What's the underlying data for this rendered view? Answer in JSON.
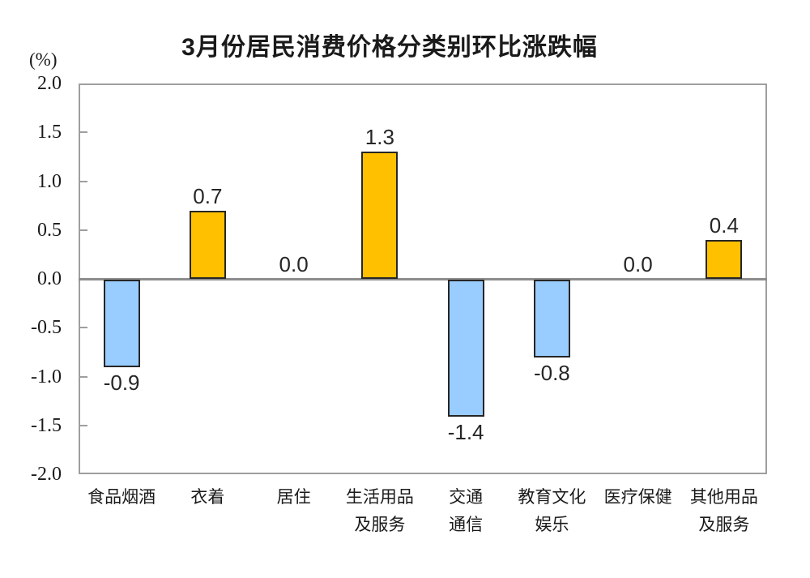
{
  "chart_data": {
    "type": "bar",
    "title": "3月份居民消费价格分类别环比涨跌幅",
    "unit_label": "(%)",
    "categories": [
      "食品烟酒",
      "衣着",
      "居住",
      "生活用品及服务",
      "交通通信",
      "教育文化娱乐",
      "医疗保健",
      "其他用品及服务"
    ],
    "category_lines": [
      [
        "食品烟酒"
      ],
      [
        "衣着"
      ],
      [
        "居住"
      ],
      [
        "生活用品",
        "及服务"
      ],
      [
        "交通",
        "通信"
      ],
      [
        "教育文化",
        "娱乐"
      ],
      [
        "医疗保健"
      ],
      [
        "其他用品",
        "及服务"
      ]
    ],
    "values": [
      -0.9,
      0.7,
      0.0,
      1.3,
      -1.4,
      -0.8,
      0.0,
      0.4
    ],
    "value_labels": [
      "-0.9",
      "0.7",
      "0.0",
      "1.3",
      "-1.4",
      "-0.8",
      "0.0",
      "0.4"
    ],
    "ylim": [
      -2.0,
      2.0
    ],
    "ytick_step": 0.5,
    "yticks": [
      2.0,
      1.5,
      1.0,
      0.5,
      0.0,
      -0.5,
      -1.0,
      -1.5,
      -2.0
    ],
    "ytick_labels": [
      "2.0",
      "1.5",
      "1.0",
      "0.5",
      "0.0",
      "-0.5",
      "-1.0",
      "-1.5",
      "-2.0"
    ],
    "xlabel": "",
    "ylabel": "(%)",
    "grid": false,
    "legend": "none",
    "colors": {
      "bar_positive": "#FFC000",
      "bar_negative": "#99CCFF",
      "bar_border": "#262626",
      "plot_border": "#9E9E9E",
      "zero_line": "#8C8C8C",
      "text": "#1A1A1A"
    }
  }
}
